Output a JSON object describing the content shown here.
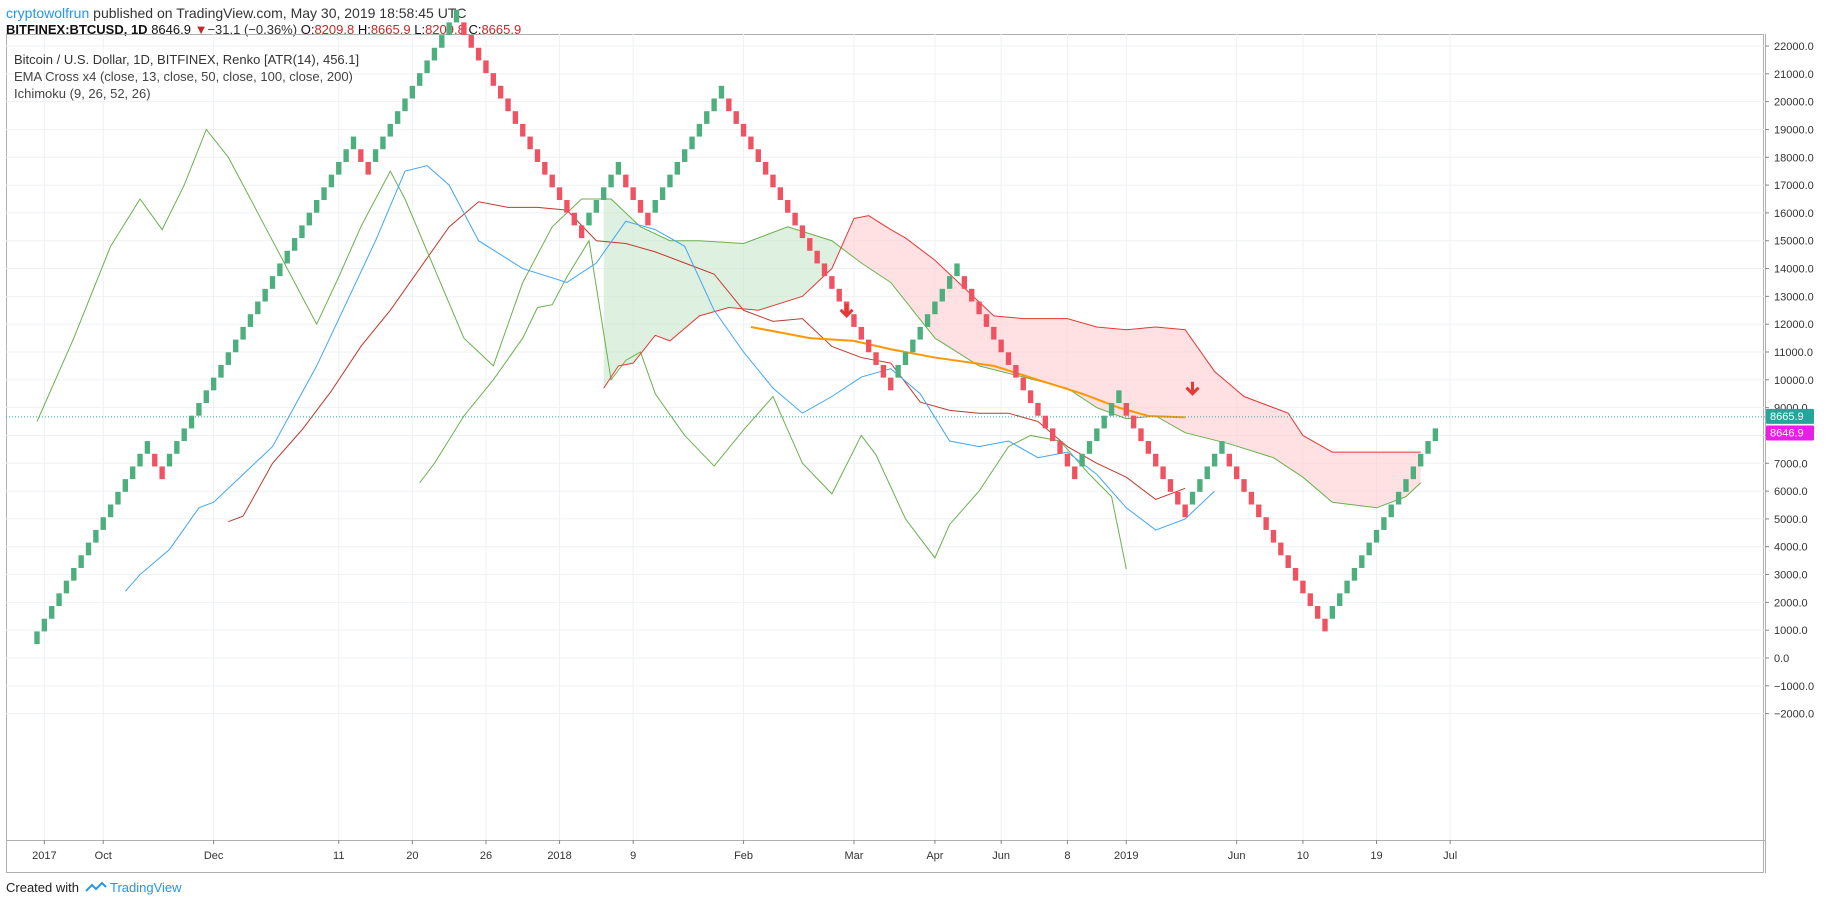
{
  "header": {
    "author": "cryptowolfrun",
    "published_text": "published on TradingView.com, May 30, 2019 18:58:45 UTC",
    "symbol": "BITFINEX:BTCUSD, 1D",
    "last": "8646.9",
    "change_arrow": "▼",
    "change": "−31.1 (−0.36%)",
    "o_label": "O:",
    "o_value": "8209.8",
    "h_label": "H:",
    "h_value": "8665.9",
    "l_label": "L:",
    "l_value": "8209.8",
    "c_label": "C:",
    "c_value": "8665.9"
  },
  "legend": {
    "title": "Bitcoin / U.S. Dollar, 1D, BITFINEX, Renko [ATR(14), 456.1]",
    "indicator_1": "EMA Cross x4 (close, 13, close, 50, close, 100, close, 200)",
    "indicator_2": "Ichimoku (9, 26, 52, 26)"
  },
  "price_labels": {
    "last_close": "8665.9",
    "ema": "8646.9",
    "last_close_color": "#26a69a",
    "ema_color": "#e91ee9"
  },
  "footer": {
    "created_with": "Created with",
    "brand": "TradingView"
  },
  "colors": {
    "up": "#4caf7d",
    "down": "#ef5361",
    "ema_blue": "#42a5f5",
    "ema_orange": "#ff9800",
    "span_a": "#6ab04c",
    "span_b": "#e53935",
    "cloud_bull": "#c8e6c9",
    "cloud_bear": "#ffcdd2",
    "annotation_arrow": "#e53935"
  },
  "chart_data": {
    "type": "renko",
    "y_axis": {
      "min": -2000,
      "max": 22000,
      "ticks": [
        "22000.0",
        "21000.0",
        "20000.0",
        "19000.0",
        "18000.0",
        "17000.0",
        "16000.0",
        "15000.0",
        "14000.0",
        "13000.0",
        "12000.0",
        "11000.0",
        "10000.0",
        "9000.0",
        "8000.0",
        "7000.0",
        "6000.0",
        "5000.0",
        "4000.0",
        "3000.0",
        "2000.0",
        "1000.0",
        "0.0",
        "−1000.0",
        "−2000.0"
      ]
    },
    "x_axis": {
      "ticks": [
        {
          "label": "2017",
          "bar": 1
        },
        {
          "label": "Oct",
          "bar": 9
        },
        {
          "label": "Dec",
          "bar": 24
        },
        {
          "label": "11",
          "bar": 41
        },
        {
          "label": "20",
          "bar": 51
        },
        {
          "label": "26",
          "bar": 61
        },
        {
          "label": "2018",
          "bar": 71
        },
        {
          "label": "9",
          "bar": 81
        },
        {
          "label": "Feb",
          "bar": 96
        },
        {
          "label": "Mar",
          "bar": 111
        },
        {
          "label": "Apr",
          "bar": 122
        },
        {
          "label": "Jun",
          "bar": 131
        },
        {
          "label": "8",
          "bar": 140
        },
        {
          "label": "2019",
          "bar": 148
        },
        {
          "label": "Jun",
          "bar": 163
        },
        {
          "label": "10",
          "bar": 172
        },
        {
          "label": "19",
          "bar": 182
        },
        {
          "label": "Jul",
          "bar": 192
        }
      ]
    },
    "renko": {
      "box_size": 456.1,
      "start": 500,
      "directions": "UUUUUUUUUUUUUUUUDDUUUUUUUUUUUUUUUUUUUUUUUUUUDDUUUUUUUUUUUUDDDDDDDDDDDDDDDDDUUUUUDDDDUUUUUUUUUUDDDDDDDDDDDDDDDDDDDDDDDUUUUUUUUUDDDDDDDDDDDDDDDDUUUUUUDDDDDDDDDUUUUUDDDDDDDDDDDDDDUUUUUUUUUUUUUUU"
    },
    "last_close": 8665.9,
    "ema_value": 8646.9,
    "ema_fast": [
      [
        12,
        2400
      ],
      [
        14,
        3000
      ],
      [
        18,
        3900
      ],
      [
        22,
        5400
      ],
      [
        24,
        5600
      ],
      [
        28,
        6600
      ],
      [
        32,
        7600
      ],
      [
        38,
        10500
      ],
      [
        46,
        15000
      ],
      [
        50,
        17500
      ],
      [
        53,
        17700
      ],
      [
        56,
        17000
      ],
      [
        60,
        15000
      ],
      [
        66,
        14000
      ],
      [
        72,
        13500
      ],
      [
        76,
        14200
      ],
      [
        80,
        15700
      ],
      [
        84,
        15400
      ],
      [
        88,
        14800
      ],
      [
        92,
        12500
      ],
      [
        96,
        11000
      ],
      [
        100,
        9700
      ],
      [
        104,
        8800
      ],
      [
        108,
        9400
      ],
      [
        112,
        10100
      ],
      [
        116,
        10400
      ],
      [
        120,
        9500
      ],
      [
        124,
        7800
      ],
      [
        128,
        7600
      ],
      [
        132,
        7800
      ],
      [
        136,
        7200
      ],
      [
        140,
        7400
      ],
      [
        144,
        6600
      ],
      [
        148,
        5400
      ],
      [
        152,
        4600
      ],
      [
        156,
        5000
      ],
      [
        160,
        6000
      ]
    ],
    "ema_slow": [
      [
        97,
        11900
      ],
      [
        101,
        11700
      ],
      [
        105,
        11500
      ],
      [
        111,
        11400
      ],
      [
        116,
        11100
      ],
      [
        122,
        10800
      ],
      [
        130,
        10500
      ],
      [
        136,
        10000
      ],
      [
        142,
        9500
      ],
      [
        147,
        9000
      ],
      [
        151,
        8700
      ],
      [
        156,
        8650
      ]
    ],
    "ichimoku_span_a": [
      [
        0,
        8500
      ],
      [
        5,
        11500
      ],
      [
        10,
        14800
      ],
      [
        14,
        16500
      ],
      [
        17,
        15400
      ],
      [
        20,
        17000
      ],
      [
        23,
        19000
      ],
      [
        26,
        18000
      ],
      [
        31,
        15500
      ],
      [
        35,
        13500
      ],
      [
        38,
        12000
      ],
      [
        41,
        13700
      ],
      [
        44,
        15500
      ],
      [
        48,
        17500
      ],
      [
        50,
        16500
      ],
      [
        54,
        14000
      ],
      [
        58,
        11500
      ],
      [
        62,
        10500
      ],
      [
        66,
        13500
      ],
      [
        70,
        15500
      ],
      [
        74,
        16500
      ],
      [
        78,
        16500
      ],
      [
        82,
        15500
      ],
      [
        86,
        15000
      ],
      [
        90,
        15000
      ],
      [
        96,
        14900
      ],
      [
        102,
        15500
      ],
      [
        108,
        15000
      ],
      [
        112,
        14200
      ],
      [
        116,
        13500
      ],
      [
        122,
        11500
      ],
      [
        128,
        10500
      ],
      [
        134,
        10100
      ],
      [
        140,
        9700
      ],
      [
        144,
        9000
      ],
      [
        148,
        8600
      ],
      [
        152,
        8700
      ],
      [
        156,
        8100
      ],
      [
        162,
        7700
      ],
      [
        168,
        7200
      ],
      [
        172,
        6500
      ],
      [
        176,
        5600
      ],
      [
        182,
        5400
      ],
      [
        186,
        5800
      ],
      [
        188,
        6300
      ]
    ],
    "ichimoku_span_b": [
      [
        77,
        9700
      ],
      [
        79,
        10500
      ],
      [
        81,
        10600
      ],
      [
        84,
        11600
      ],
      [
        86,
        11400
      ],
      [
        90,
        12300
      ],
      [
        94,
        12600
      ],
      [
        98,
        12500
      ],
      [
        104,
        13000
      ],
      [
        108,
        14000
      ],
      [
        111,
        15800
      ],
      [
        113,
        15900
      ],
      [
        116,
        15400
      ],
      [
        118,
        15100
      ],
      [
        122,
        14300
      ],
      [
        126,
        13300
      ],
      [
        130,
        12300
      ],
      [
        134,
        12200
      ],
      [
        140,
        12200
      ],
      [
        144,
        11900
      ],
      [
        148,
        11800
      ],
      [
        152,
        11900
      ],
      [
        156,
        11800
      ],
      [
        160,
        10300
      ],
      [
        164,
        9400
      ],
      [
        170,
        8800
      ],
      [
        172,
        8000
      ],
      [
        176,
        7400
      ],
      [
        188,
        7400
      ]
    ],
    "ichimoku_lagging": [
      [
        52,
        6300
      ],
      [
        54,
        7000
      ],
      [
        58,
        8700
      ],
      [
        62,
        10000
      ],
      [
        66,
        11500
      ],
      [
        68,
        12600
      ],
      [
        70,
        12700
      ],
      [
        72,
        13700
      ],
      [
        75,
        15000
      ],
      [
        78,
        10000
      ],
      [
        80,
        10700
      ],
      [
        82,
        11000
      ],
      [
        84,
        9500
      ],
      [
        88,
        8000
      ],
      [
        92,
        6900
      ],
      [
        96,
        8200
      ],
      [
        100,
        9400
      ],
      [
        104,
        7000
      ],
      [
        108,
        5900
      ],
      [
        112,
        8000
      ],
      [
        114,
        7300
      ],
      [
        118,
        5000
      ],
      [
        122,
        3600
      ],
      [
        124,
        4800
      ],
      [
        128,
        6000
      ],
      [
        132,
        7600
      ],
      [
        135,
        8000
      ],
      [
        139,
        7800
      ],
      [
        143,
        6600
      ],
      [
        146,
        5800
      ],
      [
        148,
        3200
      ]
    ],
    "ichimoku_base": [
      [
        26,
        4900
      ],
      [
        28,
        5100
      ],
      [
        32,
        7000
      ],
      [
        36,
        8200
      ],
      [
        40,
        9600
      ],
      [
        44,
        11200
      ],
      [
        48,
        12500
      ],
      [
        52,
        14000
      ],
      [
        56,
        15500
      ],
      [
        60,
        16400
      ],
      [
        64,
        16200
      ],
      [
        68,
        16200
      ],
      [
        72,
        16100
      ],
      [
        76,
        15000
      ],
      [
        80,
        14900
      ],
      [
        84,
        14600
      ],
      [
        88,
        14200
      ],
      [
        92,
        13800
      ],
      [
        96,
        12500
      ],
      [
        100,
        12100
      ],
      [
        104,
        12200
      ],
      [
        108,
        11200
      ],
      [
        112,
        10800
      ],
      [
        116,
        10600
      ],
      [
        120,
        9200
      ],
      [
        124,
        8900
      ],
      [
        128,
        8800
      ],
      [
        132,
        8800
      ],
      [
        136,
        8500
      ],
      [
        140,
        7600
      ],
      [
        144,
        7000
      ],
      [
        148,
        6500
      ],
      [
        152,
        5700
      ],
      [
        156,
        6100
      ]
    ],
    "annotations": [
      {
        "type": "arrow-down",
        "bar": 110,
        "value": 12300
      },
      {
        "type": "arrow-down",
        "bar": 157,
        "value": 9500
      }
    ]
  }
}
